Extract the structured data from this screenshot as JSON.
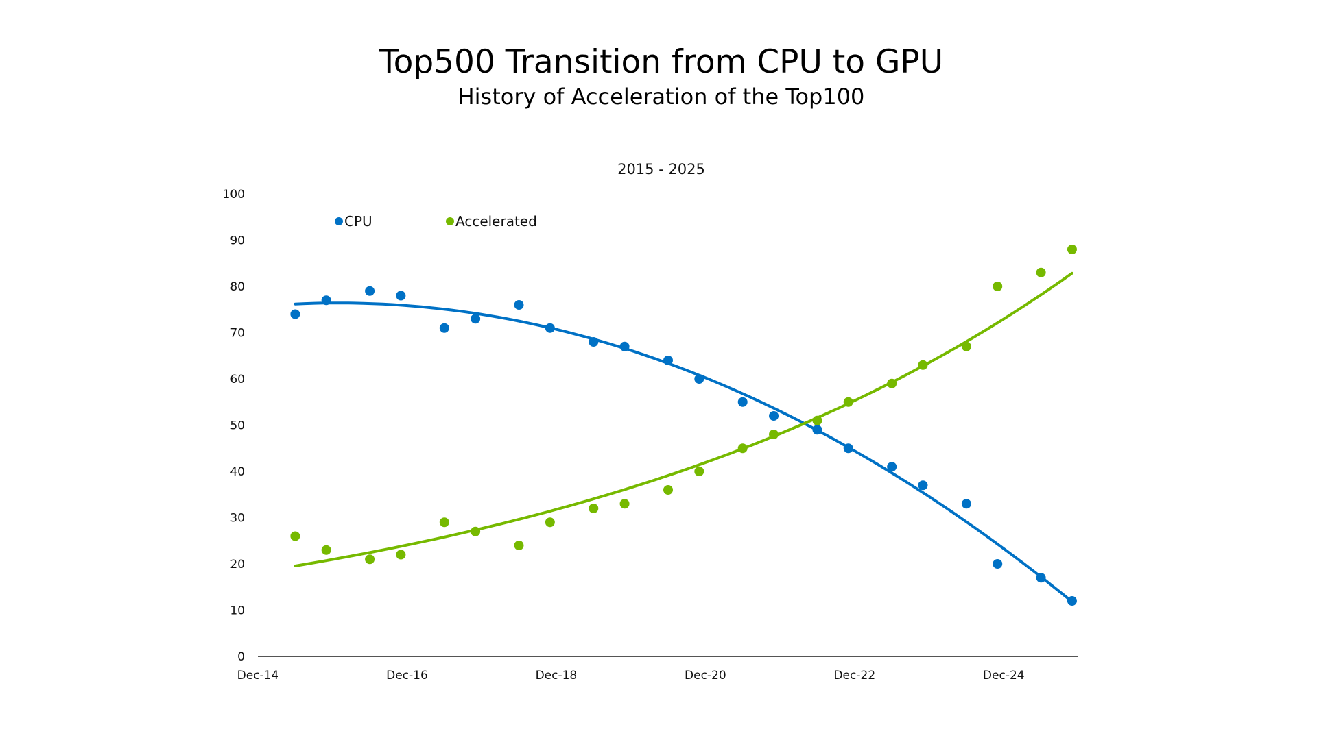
{
  "chart_data": {
    "type": "scatter",
    "title": "Top500 Transition from CPU to GPU",
    "subtitle": "History of Acceleration of the Top100",
    "period_label": "2015 - 2025",
    "xlabel": "",
    "ylabel": "",
    "ylim": [
      0,
      100
    ],
    "yticks": [
      "0",
      "10",
      "20",
      "30",
      "40",
      "50",
      "60",
      "70",
      "80",
      "90",
      "100"
    ],
    "xlim": [
      "2014-12",
      "2025-12"
    ],
    "xticks": [
      {
        "date": "2014-12",
        "label": "Dec-14"
      },
      {
        "date": "2016-12",
        "label": "Dec-16"
      },
      {
        "date": "2018-12",
        "label": "Dec-18"
      },
      {
        "date": "2020-12",
        "label": "Dec-20"
      },
      {
        "date": "2022-12",
        "label": "Dec-22"
      },
      {
        "date": "2024-12",
        "label": "Dec-24"
      }
    ],
    "grid": false,
    "legend_placement": "top-left",
    "x": [
      "2015-06",
      "2015-11",
      "2016-06",
      "2016-11",
      "2017-06",
      "2017-11",
      "2018-06",
      "2018-11",
      "2019-06",
      "2019-11",
      "2020-06",
      "2020-11",
      "2021-06",
      "2021-11",
      "2022-06",
      "2022-11",
      "2023-06",
      "2023-11",
      "2024-06",
      "2024-11",
      "2025-06",
      "2025-11"
    ],
    "series": [
      {
        "name": "CPU",
        "color": "#0071c5",
        "trendline": "polynomial-2",
        "values": [
          74,
          77,
          79,
          78,
          71,
          73,
          76,
          71,
          68,
          67,
          64,
          60,
          55,
          52,
          49,
          45,
          41,
          37,
          33,
          20,
          17,
          12
        ]
      },
      {
        "name": "Accelerated",
        "color": "#76b900",
        "trendline": "exponential",
        "values": [
          26,
          23,
          21,
          22,
          29,
          27,
          24,
          29,
          32,
          33,
          36,
          40,
          45,
          48,
          51,
          55,
          59,
          63,
          67,
          80,
          83,
          88
        ]
      }
    ],
    "axis_color": "#555555"
  }
}
